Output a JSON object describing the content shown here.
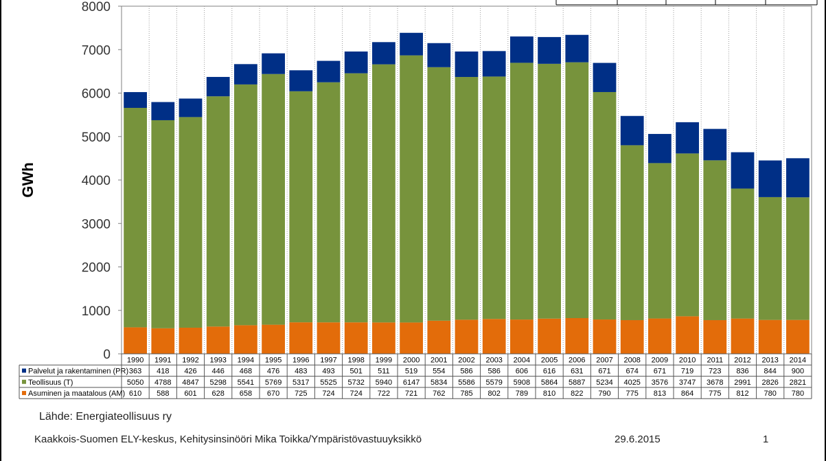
{
  "chart_data": {
    "type": "bar",
    "stacked": true,
    "ylabel": "GWh",
    "ylim": [
      0,
      8000
    ],
    "yticks": [
      0,
      1000,
      2000,
      3000,
      4000,
      5000,
      6000,
      7000,
      8000
    ],
    "categories": [
      "1990",
      "1991",
      "1992",
      "1993",
      "1994",
      "1995",
      "1996",
      "1997",
      "1998",
      "1999",
      "2000",
      "2001",
      "2002",
      "2003",
      "2004",
      "2005",
      "2006",
      "2007",
      "2008",
      "2009",
      "2010",
      "2011",
      "2012",
      "2013",
      "2014"
    ],
    "series": [
      {
        "name": "Asuminen ja maatalous (AM)",
        "color": "#e36c0a",
        "values": [
          610,
          588,
          601,
          628,
          658,
          670,
          725,
          724,
          724,
          722,
          721,
          762,
          785,
          802,
          789,
          810,
          822,
          790,
          775,
          813,
          864,
          775,
          812,
          780,
          780
        ]
      },
      {
        "name": "Teollisuus (T)",
        "color": "#77933c",
        "values": [
          5050,
          4788,
          4847,
          5298,
          5541,
          5769,
          5317,
          5525,
          5732,
          5940,
          6147,
          5834,
          5586,
          5579,
          5908,
          5864,
          5887,
          5234,
          4025,
          3576,
          3747,
          3678,
          2991,
          2826,
          2821
        ]
      },
      {
        "name": "Palvelut ja rakentaminen (PR)",
        "color": "#002f86",
        "values": [
          363,
          418,
          426,
          446,
          468,
          476,
          483,
          493,
          501,
          511,
          519,
          554,
          586,
          586,
          606,
          616,
          631,
          671,
          674,
          671,
          719,
          723,
          836,
          844,
          900
        ]
      }
    ],
    "table_row_order": [
      "Palvelut ja rakentaminen (PR)",
      "Teollisuus (T)",
      "Asuminen ja maatalous (AM)"
    ],
    "grid": "vertical-dotted",
    "legend": "data-table"
  },
  "source": "Lähde: Energiateollisuus ry",
  "footer": {
    "organization": "Kaakkois-Suomen ELY-keskus, Kehitysinsinööri Mika Toikka/Ympäristövastuuyksikkö",
    "date": "29.6.2015",
    "page": "1"
  }
}
